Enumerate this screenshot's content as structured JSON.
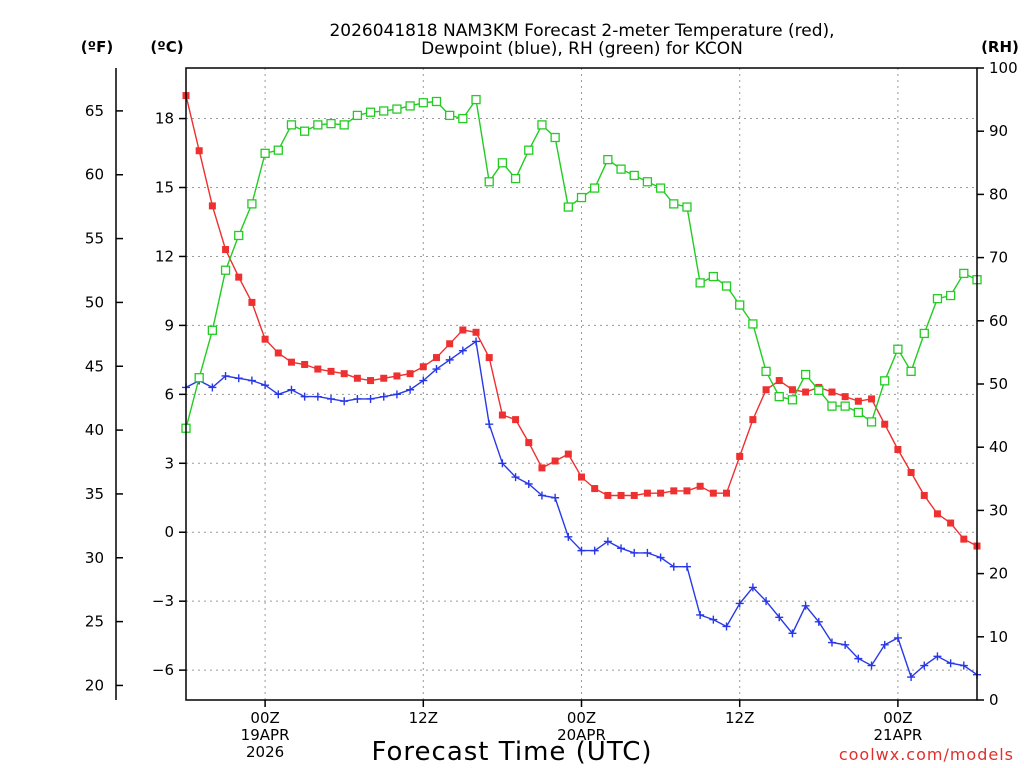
{
  "chart_data": {
    "type": "line",
    "title": [
      "2026041818 NAM3KM Forecast 2-meter Temperature (red),",
      "Dewpoint (blue), RH (green) for KCON"
    ],
    "xlabel": "Forecast Time (UTC)",
    "credit": "coolwx.com/models",
    "units": {
      "fahrenheit": "(ºF)",
      "celsius": "(ºC)",
      "rh": "(RH)"
    },
    "x_unit": "forecast hour from 2026041818",
    "xlim": [
      0,
      60
    ],
    "ylim_celsius": [
      -7.3,
      20.2
    ],
    "ylim_rh": [
      0,
      100
    ],
    "x_ticks": [
      {
        "hour": 6,
        "lines": [
          "00Z",
          "19APR",
          "2026"
        ]
      },
      {
        "hour": 18,
        "lines": [
          "12Z"
        ]
      },
      {
        "hour": 30,
        "lines": [
          "00Z",
          "20APR"
        ]
      },
      {
        "hour": 42,
        "lines": [
          "12Z"
        ]
      },
      {
        "hour": 54,
        "lines": [
          "00Z",
          "21APR"
        ]
      }
    ],
    "celsius_ticks": [
      "18",
      "15",
      "12",
      "9",
      "6",
      "3",
      "0",
      "−3",
      "−6"
    ],
    "celsius_tick_values": [
      18,
      15,
      12,
      9,
      6,
      3,
      0,
      -3,
      -6
    ],
    "fahrenheit_ticks": [
      "65",
      "60",
      "55",
      "50",
      "45",
      "40",
      "35",
      "30",
      "25",
      "20"
    ],
    "fahrenheit_tick_values": [
      65,
      60,
      55,
      50,
      45,
      40,
      35,
      30,
      25,
      20
    ],
    "rh_ticks": [
      "100",
      "90",
      "80",
      "70",
      "60",
      "50",
      "40",
      "30",
      "20",
      "10",
      "0"
    ],
    "rh_tick_values": [
      100,
      90,
      80,
      70,
      60,
      50,
      40,
      30,
      20,
      10,
      0
    ],
    "series": [
      {
        "name": "Temperature",
        "color": "#ee3030",
        "marker": "filled-square",
        "axis": "celsius",
        "x": [
          0,
          1,
          2,
          3,
          4,
          5,
          6,
          7,
          8,
          9,
          10,
          11,
          12,
          13,
          14,
          15,
          16,
          17,
          18,
          19,
          20,
          21,
          22,
          23,
          24,
          25,
          26,
          27,
          28,
          29,
          30,
          31,
          32,
          33,
          34,
          35,
          36,
          37,
          38,
          39,
          40,
          41,
          42,
          43,
          44,
          45,
          46,
          47,
          48,
          49,
          50,
          51,
          52,
          53,
          54,
          55,
          56,
          57,
          58,
          59,
          60
        ],
        "values": [
          19.0,
          16.6,
          14.2,
          12.3,
          11.1,
          10.0,
          8.4,
          7.8,
          7.4,
          7.3,
          7.1,
          7.0,
          6.9,
          6.7,
          6.6,
          6.7,
          6.8,
          6.9,
          7.2,
          7.6,
          8.2,
          8.8,
          8.7,
          7.6,
          5.1,
          4.9,
          3.9,
          2.8,
          3.1,
          3.4,
          2.4,
          1.9,
          1.6,
          1.6,
          1.6,
          1.7,
          1.7,
          1.8,
          1.8,
          2.0,
          1.7,
          1.7,
          3.3,
          4.9,
          6.2,
          6.6,
          6.2,
          6.1,
          6.3,
          6.1,
          5.9,
          5.7,
          5.8,
          4.7,
          3.6,
          2.6,
          1.6,
          0.8,
          0.4,
          -0.3,
          -0.6
        ]
      },
      {
        "name": "Dewpoint",
        "color": "#2838e8",
        "marker": "plus",
        "axis": "celsius",
        "x": [
          0,
          1,
          2,
          3,
          4,
          5,
          6,
          7,
          8,
          9,
          10,
          11,
          12,
          13,
          14,
          15,
          16,
          17,
          18,
          19,
          20,
          21,
          22,
          23,
          24,
          25,
          26,
          27,
          28,
          29,
          30,
          31,
          32,
          33,
          34,
          35,
          36,
          37,
          38,
          39,
          40,
          41,
          42,
          43,
          44,
          45,
          46,
          47,
          48,
          49,
          50,
          51,
          52,
          53,
          54,
          55,
          56,
          57,
          58,
          59,
          60
        ],
        "values": [
          6.3,
          6.6,
          6.3,
          6.8,
          6.7,
          6.6,
          6.4,
          6.0,
          6.2,
          5.9,
          5.9,
          5.8,
          5.7,
          5.8,
          5.8,
          5.9,
          6.0,
          6.2,
          6.6,
          7.1,
          7.5,
          7.9,
          8.3,
          4.7,
          3.0,
          2.4,
          2.1,
          1.6,
          1.5,
          -0.2,
          -0.8,
          -0.8,
          -0.4,
          -0.7,
          -0.9,
          -0.9,
          -1.1,
          -1.5,
          -1.5,
          -3.6,
          -3.8,
          -4.1,
          -3.1,
          -2.4,
          -3.0,
          -3.7,
          -4.4,
          -3.2,
          -3.9,
          -4.8,
          -4.9,
          -5.5,
          -5.8,
          -4.9,
          -4.6,
          -6.3,
          -5.8,
          -5.4,
          -5.7,
          -5.8,
          -6.2
        ]
      },
      {
        "name": "RH",
        "color": "#22cc22",
        "marker": "open-square",
        "axis": "rh",
        "x": [
          0,
          1,
          2,
          3,
          4,
          5,
          6,
          7,
          8,
          9,
          10,
          11,
          12,
          13,
          14,
          15,
          16,
          17,
          18,
          19,
          20,
          21,
          22,
          23,
          24,
          25,
          26,
          27,
          28,
          29,
          30,
          31,
          32,
          33,
          34,
          35,
          36,
          37,
          38,
          39,
          40,
          41,
          42,
          43,
          44,
          45,
          46,
          47,
          48,
          49,
          50,
          51,
          52,
          53,
          54,
          55,
          56,
          57,
          58,
          59,
          60
        ],
        "values": [
          43.0,
          51.0,
          58.5,
          68.0,
          73.5,
          78.5,
          86.5,
          87.0,
          91.0,
          90.0,
          91.0,
          91.2,
          91.0,
          92.5,
          93.0,
          93.2,
          93.5,
          94.0,
          94.5,
          94.7,
          92.5,
          92.0,
          95.0,
          82.0,
          85.0,
          82.5,
          87.0,
          91.0,
          89.0,
          78.0,
          79.5,
          81.0,
          85.5,
          84.0,
          83.0,
          82.0,
          81.0,
          78.5,
          78.0,
          66.0,
          67.0,
          65.5,
          62.5,
          59.5,
          52.0,
          48.0,
          47.5,
          51.5,
          49.0,
          46.5,
          46.5,
          45.5,
          44.0,
          50.5,
          55.5,
          52.0,
          58.0,
          63.5,
          64.0,
          67.5,
          66.5
        ]
      }
    ]
  }
}
